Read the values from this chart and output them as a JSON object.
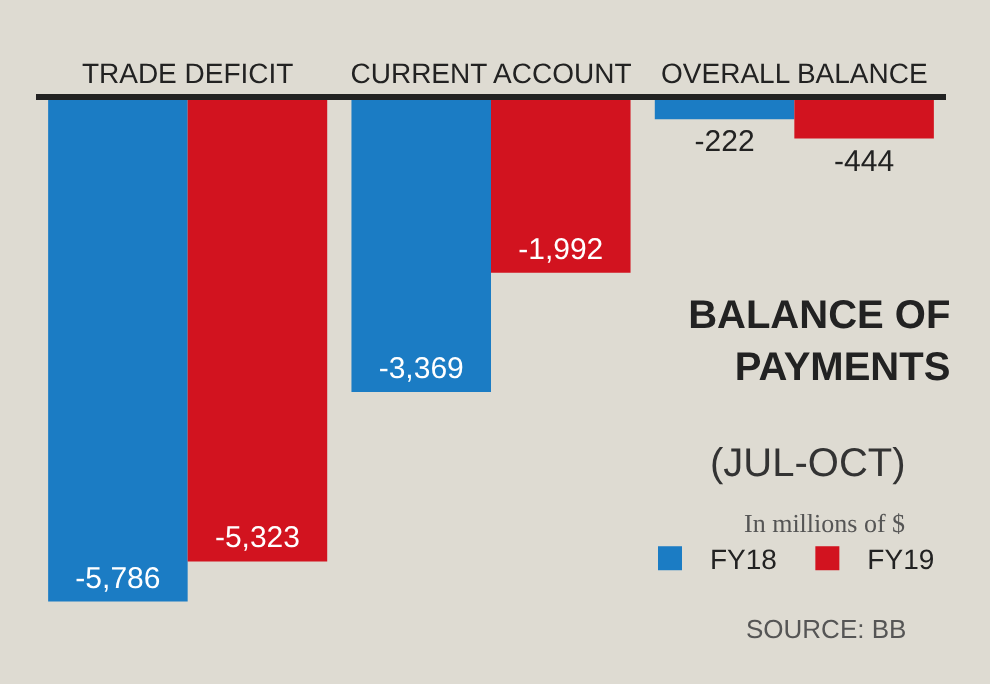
{
  "chart_data": {
    "type": "bar",
    "title": "BALANCE OF PAYMENTS",
    "subtitle": "(JUL-OCT)",
    "categories": [
      "TRADE DEFICIT",
      "CURRENT ACCOUNT",
      "OVERALL BALANCE"
    ],
    "series": [
      {
        "name": "FY18",
        "color": "#1b7cc4",
        "values": [
          -5786,
          -3369,
          -222
        ],
        "value_labels": [
          "-5,786",
          "-3,369",
          "-222"
        ]
      },
      {
        "name": "FY19",
        "color": "#d2131f",
        "values": [
          -5323,
          -1992,
          -444
        ],
        "value_labels": [
          "-5,323",
          "-1,992",
          "-444"
        ]
      }
    ],
    "tick_labels": "x",
    "legend": "bottom right",
    "grid": false,
    "annotations": [
      "In millions of $",
      "SOURCE: BB"
    ]
  }
}
